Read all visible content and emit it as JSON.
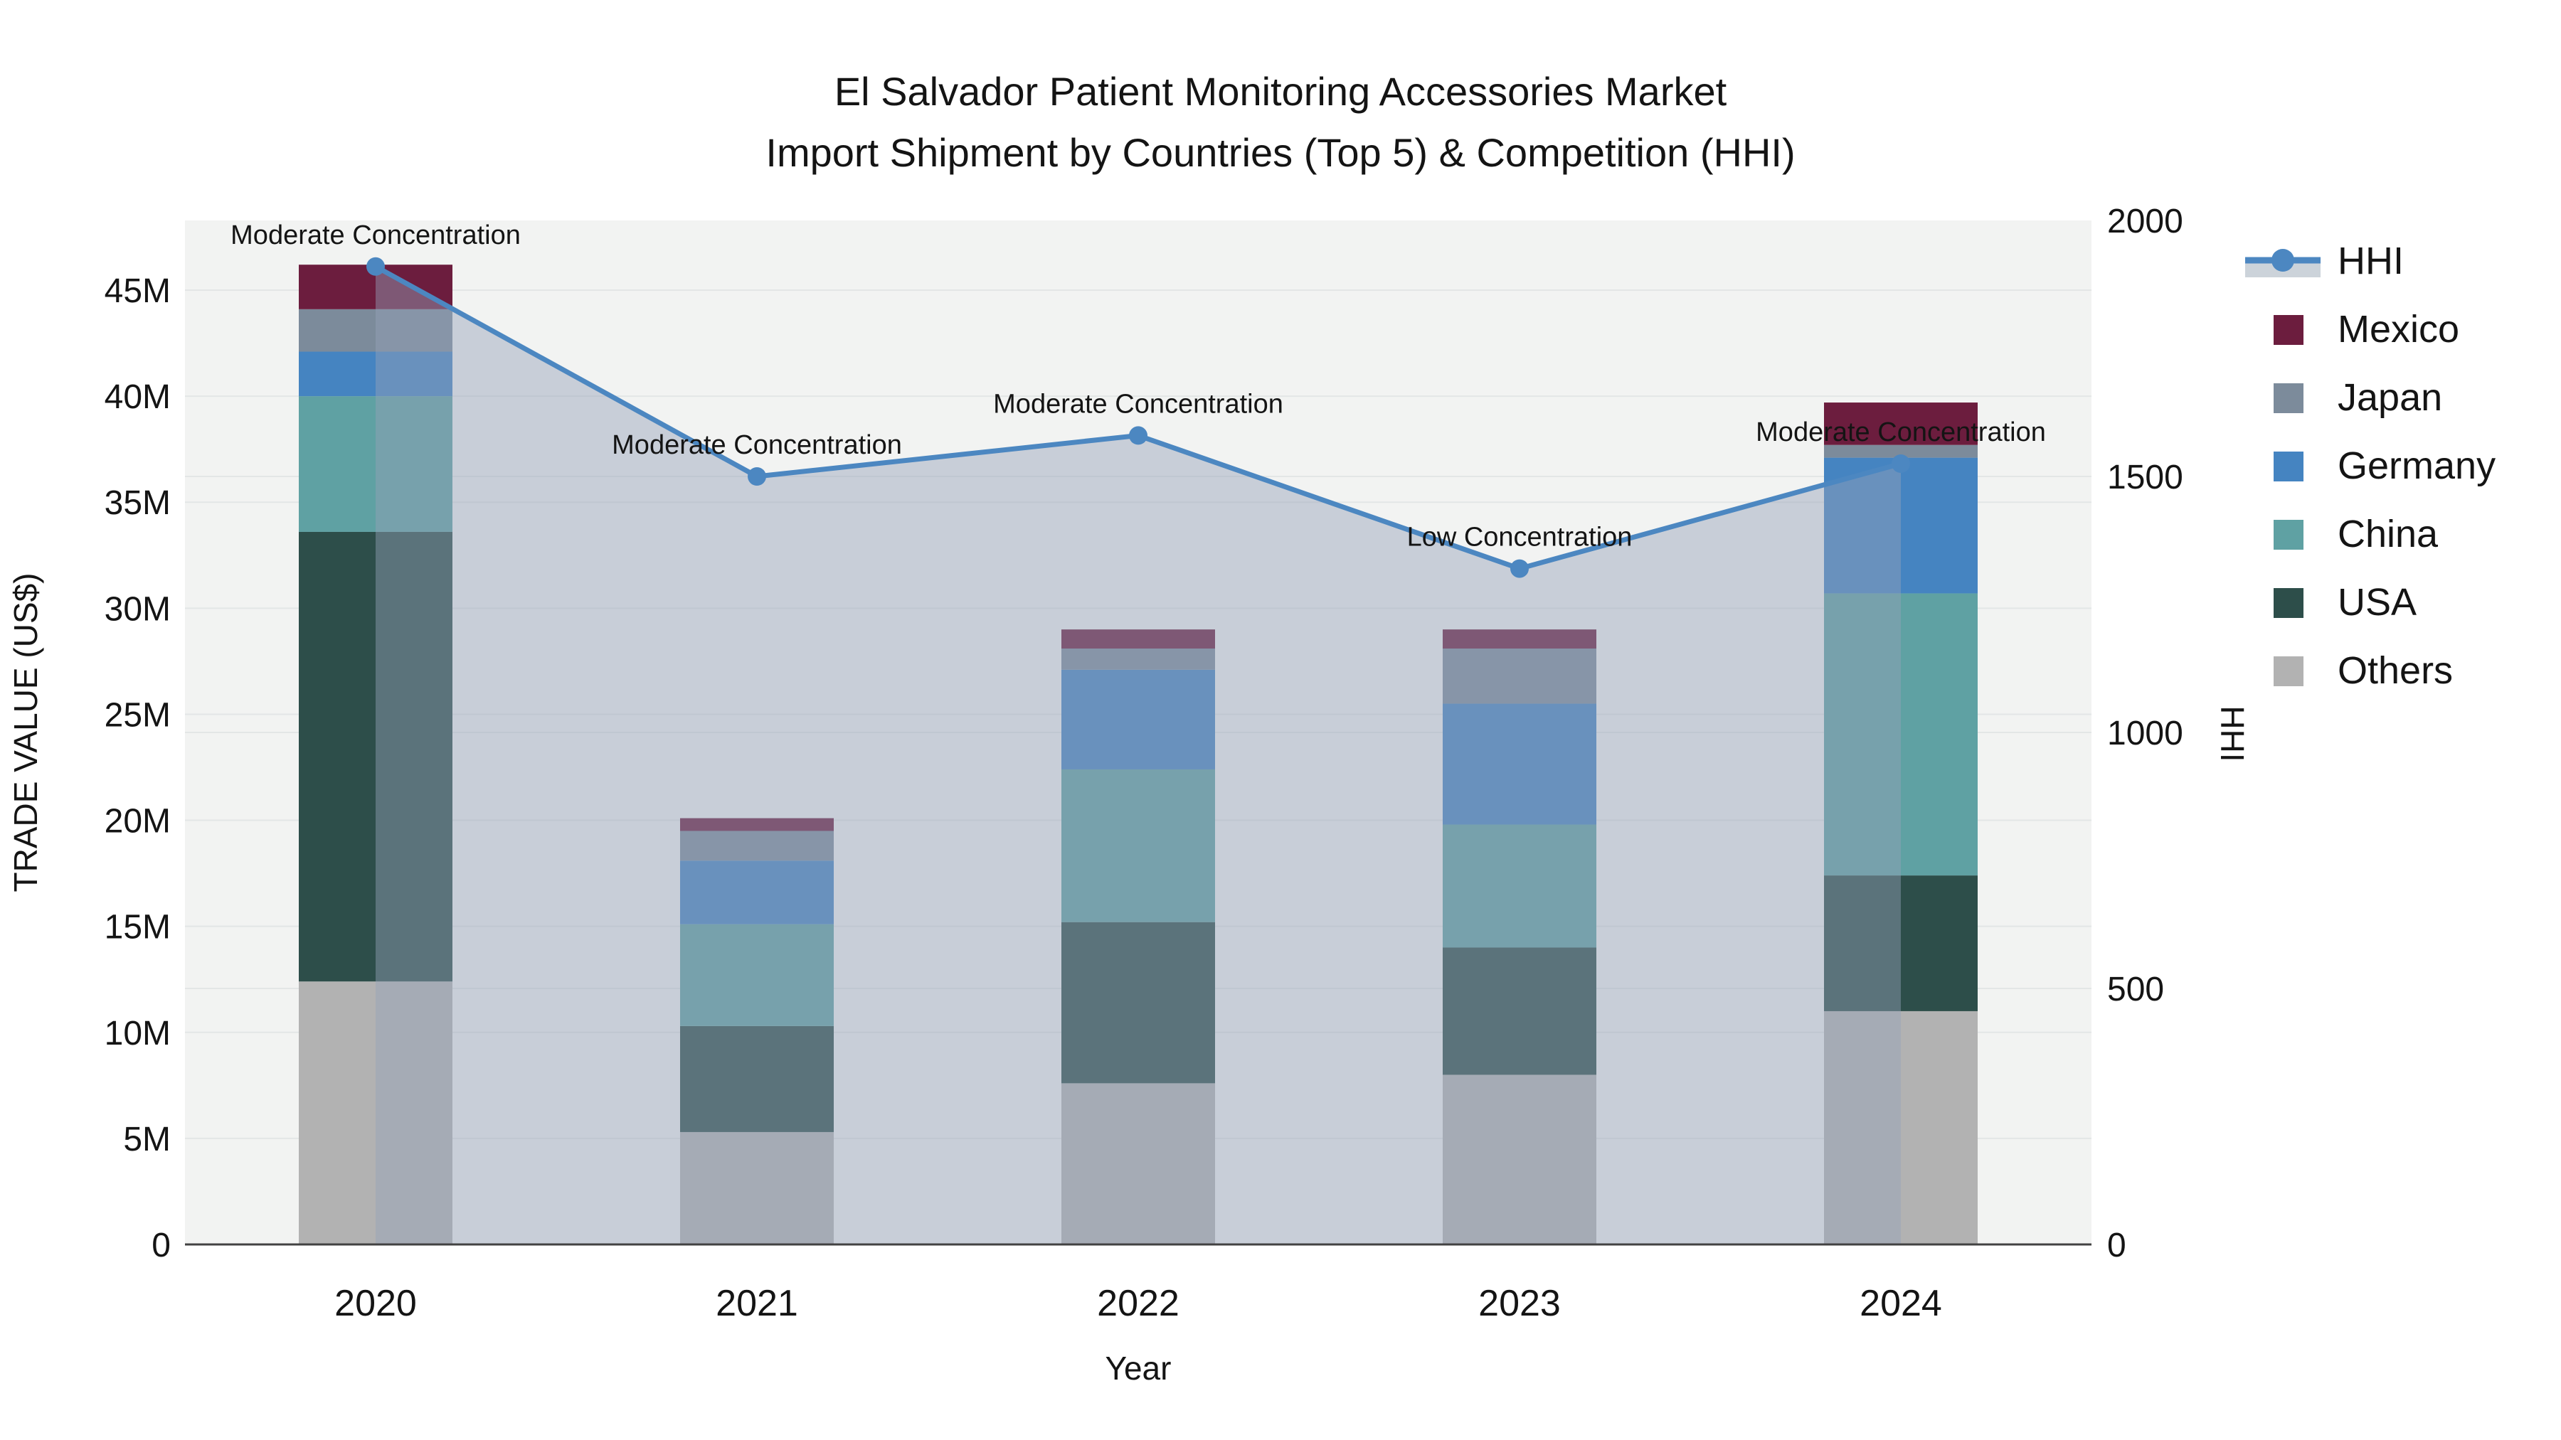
{
  "title": {
    "line1": "El Salvador Patient Monitoring Accessories Market",
    "line2": "Import Shipment by Countries (Top 5) & Competition (HHI)"
  },
  "colors": {
    "figure_bg": "#ffffff",
    "plot_bg": "#f2f3f2",
    "grid": "#e3e6e6",
    "axis_line": "#424242",
    "text": "#141414",
    "hhi_line": "#4c87c1",
    "hhi_area_fill": "rgba(148,161,184,0.45)",
    "hhi_legend_fill": "#ccd3da"
  },
  "chart_data": {
    "type": "bar+line",
    "title": "El Salvador Patient Monitoring Accessories Market Import Shipment by Countries (Top 5) & Competition (HHI)",
    "categories": [
      "2020",
      "2021",
      "2022",
      "2023",
      "2024"
    ],
    "unit": "US$ millions",
    "stack_order_bottom_to_top": [
      "Others",
      "USA",
      "China",
      "Germany",
      "Japan",
      "Mexico"
    ],
    "series": [
      {
        "name": "Others",
        "color": "#b2b2b2",
        "values": [
          12.4,
          5.3,
          7.6,
          8.0,
          11.0
        ]
      },
      {
        "name": "USA",
        "color": "#2d4e4a",
        "values": [
          21.2,
          5.0,
          7.6,
          6.0,
          6.4
        ]
      },
      {
        "name": "China",
        "color": "#5fa1a3",
        "values": [
          6.4,
          4.8,
          7.2,
          5.8,
          13.3
        ]
      },
      {
        "name": "Germany",
        "color": "#4584c1",
        "values": [
          2.1,
          3.0,
          4.7,
          5.7,
          6.4
        ]
      },
      {
        "name": "Japan",
        "color": "#7c8b9b",
        "values": [
          2.0,
          1.4,
          1.0,
          2.6,
          0.6
        ]
      },
      {
        "name": "Mexico",
        "color": "#6c1d3e",
        "values": [
          2.1,
          0.6,
          0.9,
          0.9,
          2.0
        ]
      }
    ],
    "totals": [
      46.2,
      20.1,
      29.0,
      29.0,
      39.7
    ],
    "hhi": {
      "name": "HHI",
      "values": [
        1910,
        1500,
        1580,
        1320,
        1525
      ],
      "annotations": [
        "Moderate Concentration",
        "Moderate Concentration",
        "Moderate Concentration",
        "Low Concentration",
        "Moderate Concentration"
      ]
    },
    "x_label": "Year",
    "y_left": {
      "label": "TRADE VALUE (US$)",
      "ticks": [
        0,
        5,
        10,
        15,
        20,
        25,
        30,
        35,
        40,
        45
      ],
      "tick_suffix": "M",
      "range_top_m": 48.3
    },
    "y_right": {
      "label": "HHI",
      "ticks": [
        0,
        500,
        1000,
        1500,
        2000
      ],
      "range": [
        0,
        2000
      ]
    },
    "grid": true,
    "legend_position": "right",
    "legend_order": [
      "HHI",
      "Mexico",
      "Japan",
      "Germany",
      "China",
      "USA",
      "Others"
    ]
  }
}
